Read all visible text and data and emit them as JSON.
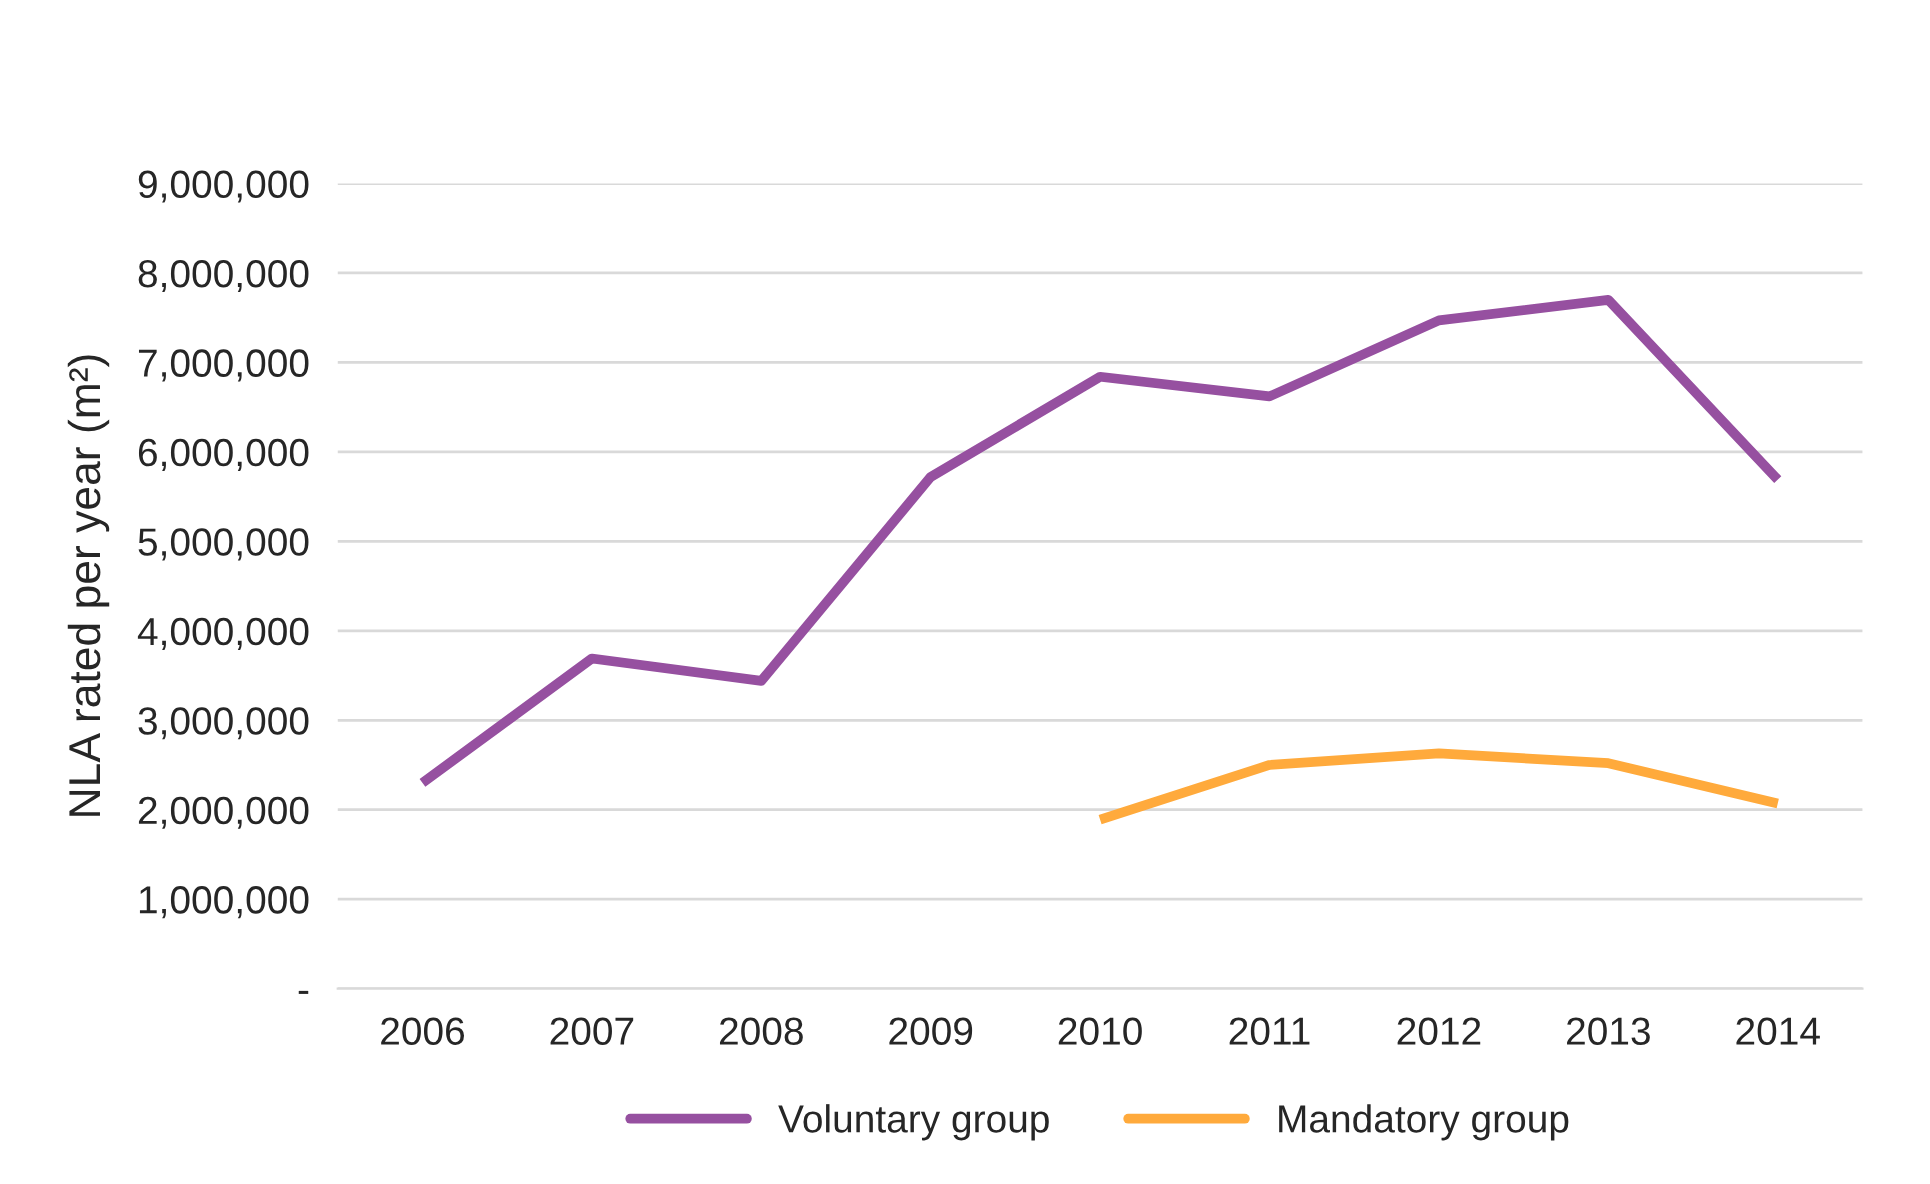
{
  "chart_data": {
    "type": "line",
    "ylabel": "NLA rated per year (m²)",
    "categories": [
      "2006",
      "2007",
      "2008",
      "2009",
      "2010",
      "2011",
      "2012",
      "2013",
      "2014"
    ],
    "series": [
      {
        "name": "Voluntary group",
        "color": "#9650a0",
        "values": [
          2300000,
          3690000,
          3440000,
          5720000,
          6840000,
          6620000,
          7470000,
          7700000,
          5690000
        ]
      },
      {
        "name": "Mandatory group",
        "color": "#ffaa3c",
        "values": [
          null,
          null,
          null,
          null,
          1890000,
          2500000,
          2630000,
          2520000,
          2070000
        ]
      }
    ],
    "ylim": [
      0,
      9000000
    ],
    "yticks": [
      {
        "value": 0,
        "label": "-"
      },
      {
        "value": 1000000,
        "label": "1,000,000"
      },
      {
        "value": 2000000,
        "label": "2,000,000"
      },
      {
        "value": 3000000,
        "label": "3,000,000"
      },
      {
        "value": 4000000,
        "label": "4,000,000"
      },
      {
        "value": 5000000,
        "label": "5,000,000"
      },
      {
        "value": 6000000,
        "label": "6,000,000"
      },
      {
        "value": 7000000,
        "label": "7,000,000"
      },
      {
        "value": 8000000,
        "label": "8,000,000"
      },
      {
        "value": 9000000,
        "label": "9,000,000"
      }
    ],
    "grid": "y",
    "legend": "bottom",
    "marker": "none",
    "line_style": "solid"
  }
}
